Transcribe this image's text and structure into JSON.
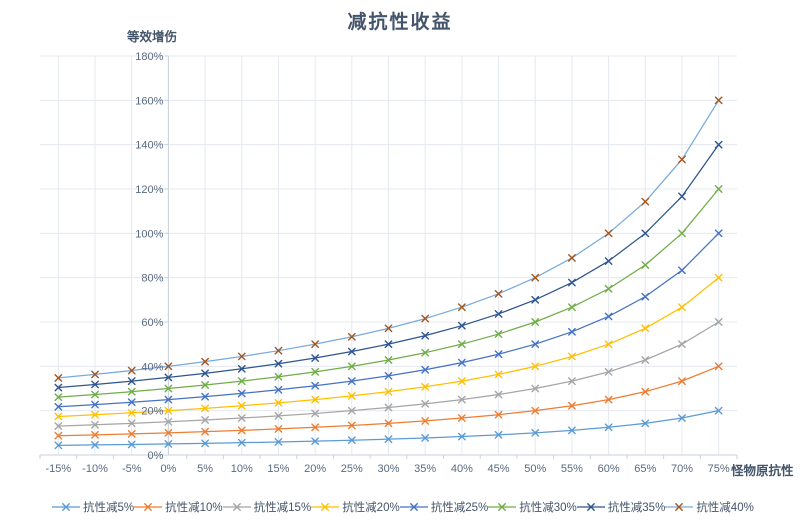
{
  "chart_data": {
    "type": "line",
    "title": "减抗性收益",
    "xlabel": "怪物原抗性",
    "ylabel": "等效增伤",
    "categories": [
      "-15%",
      "-10%",
      "-5%",
      "0%",
      "5%",
      "10%",
      "15%",
      "20%",
      "25%",
      "30%",
      "35%",
      "40%",
      "45%",
      "50%",
      "55%",
      "60%",
      "65%",
      "70%",
      "75%"
    ],
    "x_values": [
      -15,
      -10,
      -5,
      0,
      5,
      10,
      15,
      20,
      25,
      30,
      35,
      40,
      45,
      50,
      55,
      60,
      65,
      70,
      75
    ],
    "y_ticks": [
      0,
      20,
      40,
      60,
      80,
      100,
      120,
      140,
      160,
      180
    ],
    "y_tick_labels": [
      "0%",
      "20%",
      "40%",
      "60%",
      "80%",
      "100%",
      "120%",
      "140%",
      "160%",
      "180%"
    ],
    "ylim": [
      0,
      180
    ],
    "grid": true,
    "marker": "x",
    "legend_position": "bottom",
    "axis_cross_category_index": 3,
    "colors": {
      "gridline": "#E4E9F1",
      "axis_line": "#C9D2DD",
      "tick_text": "#5A6A80",
      "title_text": "#44546A"
    },
    "series": [
      {
        "name": "抗性减5%",
        "line_color": "#5B9BD5",
        "marker_color": "#5B9BD5",
        "values": [
          4.35,
          4.55,
          4.76,
          5,
          5.26,
          5.56,
          5.88,
          6.25,
          6.67,
          7.14,
          7.69,
          8.33,
          9.09,
          10,
          11.11,
          12.5,
          14.29,
          16.67,
          20
        ]
      },
      {
        "name": "抗性减10%",
        "line_color": "#ED7D31",
        "marker_color": "#ED7D31",
        "values": [
          8.7,
          9.09,
          9.52,
          10,
          10.53,
          11.11,
          11.76,
          12.5,
          13.33,
          14.29,
          15.38,
          16.67,
          18.18,
          20,
          22.22,
          25,
          28.57,
          33.33,
          40
        ]
      },
      {
        "name": "抗性减15%",
        "line_color": "#A5A5A5",
        "marker_color": "#A5A5A5",
        "values": [
          13.04,
          13.64,
          14.29,
          15,
          15.79,
          16.67,
          17.65,
          18.75,
          20,
          21.43,
          23.08,
          25,
          27.27,
          30,
          33.33,
          37.5,
          42.86,
          50,
          60
        ]
      },
      {
        "name": "抗性减20%",
        "line_color": "#FFC000",
        "marker_color": "#FFC000",
        "values": [
          17.39,
          18.18,
          19.05,
          20,
          21.05,
          22.22,
          23.53,
          25,
          26.67,
          28.57,
          30.77,
          33.33,
          36.36,
          40,
          44.44,
          50,
          57.14,
          66.67,
          80
        ]
      },
      {
        "name": "抗性减25%",
        "line_color": "#4472C4",
        "marker_color": "#4472C4",
        "values": [
          21.74,
          22.73,
          23.81,
          25,
          26.32,
          27.78,
          29.41,
          31.25,
          33.33,
          35.71,
          38.46,
          41.67,
          45.45,
          50,
          55.56,
          62.5,
          71.43,
          83.33,
          100
        ]
      },
      {
        "name": "抗性减30%",
        "line_color": "#70AD47",
        "marker_color": "#70AD47",
        "values": [
          26.09,
          27.27,
          28.57,
          30,
          31.58,
          33.33,
          35.29,
          37.5,
          40,
          42.86,
          46.15,
          50,
          54.55,
          60,
          66.67,
          75,
          85.71,
          100,
          120
        ]
      },
      {
        "name": "抗性减35%",
        "line_color": "#2E558E",
        "marker_color": "#2E558E",
        "values": [
          30.43,
          31.82,
          33.33,
          35,
          36.84,
          38.89,
          41.18,
          43.75,
          46.67,
          50,
          53.85,
          58.33,
          63.64,
          70,
          77.78,
          87.5,
          100,
          116.67,
          140
        ]
      },
      {
        "name": "抗性减40%",
        "line_color": "#77ABDC",
        "marker_color": "#A5551E",
        "values": [
          34.78,
          36.36,
          38.1,
          40,
          42.11,
          44.44,
          47.06,
          50,
          53.33,
          57.14,
          61.54,
          66.67,
          72.73,
          80,
          88.89,
          100,
          114.29,
          133.33,
          160
        ]
      }
    ]
  }
}
